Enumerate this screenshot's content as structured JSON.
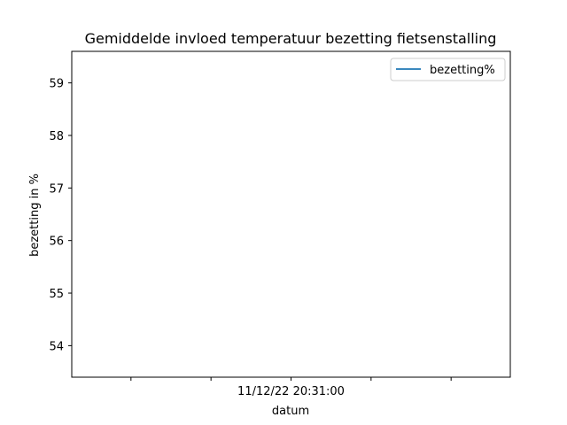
{
  "chart_data": {
    "type": "line",
    "title": "Gemiddelde invloed temperatuur bezetting fietsenstalling",
    "xlabel": "datum",
    "ylabel": "bezetting in %",
    "x_ticks": [
      "",
      "",
      "11/12/22 20:31:00",
      "",
      ""
    ],
    "y_ticks": [
      54,
      55,
      56,
      57,
      58,
      59
    ],
    "ylim": [
      53.4,
      59.6
    ],
    "series": [
      {
        "name": "bezetting%",
        "x": [],
        "y": [],
        "color": "#1f77b4"
      }
    ],
    "legend": "top-right",
    "grid": false
  }
}
